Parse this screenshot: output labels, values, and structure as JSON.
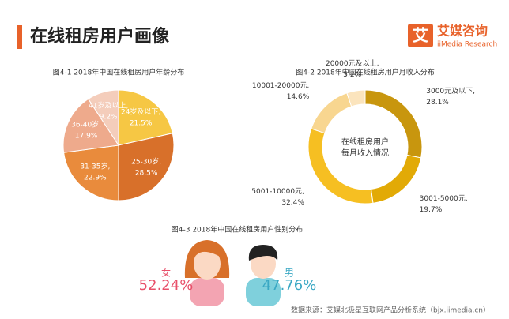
{
  "header": {
    "title": "在线租房用户画像",
    "logo_mark": "艾",
    "logo_name": "艾媒咨询",
    "logo_sub": "iiMedia Research"
  },
  "chart_data": [
    {
      "type": "pie",
      "title": "图4-1 2018年中国在线租房用户年龄分布",
      "categories": [
        "24岁及以下,",
        "25-30岁,",
        "31-35岁,",
        "36-40岁,",
        "41岁及以上,"
      ],
      "values": [
        21.5,
        28.5,
        22.9,
        17.9,
        9.2
      ],
      "value_labels": [
        "21.5%",
        "28.5%",
        "22.9%",
        "17.9%",
        "9.2%"
      ],
      "colors": [
        "#f6c744",
        "#d8702a",
        "#e98b3c",
        "#eeaa8c",
        "#f4cdbb"
      ]
    },
    {
      "type": "donut",
      "title": "图4-2 2018年中国在线租房用户月收入分布",
      "center_text": [
        "在线租房用户",
        "每月收入情况"
      ],
      "categories": [
        "3000元及以下,",
        "3001-5000元,",
        "5001-10000元,",
        "10001-20000元,",
        "20000元及以上,"
      ],
      "values": [
        28.1,
        19.7,
        32.4,
        14.6,
        5.2
      ],
      "value_labels": [
        "28.1%",
        "19.7%",
        "32.4%",
        "14.6%",
        "5.2%"
      ],
      "colors": [
        "#c8960e",
        "#e2aa06",
        "#f6bf22",
        "#f8d690",
        "#fbe4bd"
      ]
    },
    {
      "type": "pictogram",
      "title": "图4-3 2018年中国在线租房用户性别分布",
      "categories": [
        "女",
        "男"
      ],
      "values": [
        52.24,
        47.76
      ],
      "value_labels": [
        "52.24%",
        "47.76%"
      ],
      "colors": [
        "#e8506a",
        "#3aa8c4"
      ]
    }
  ],
  "source": "数据来源：艾媒北极星互联网产品分析系统（bjx.iimedia.cn）"
}
